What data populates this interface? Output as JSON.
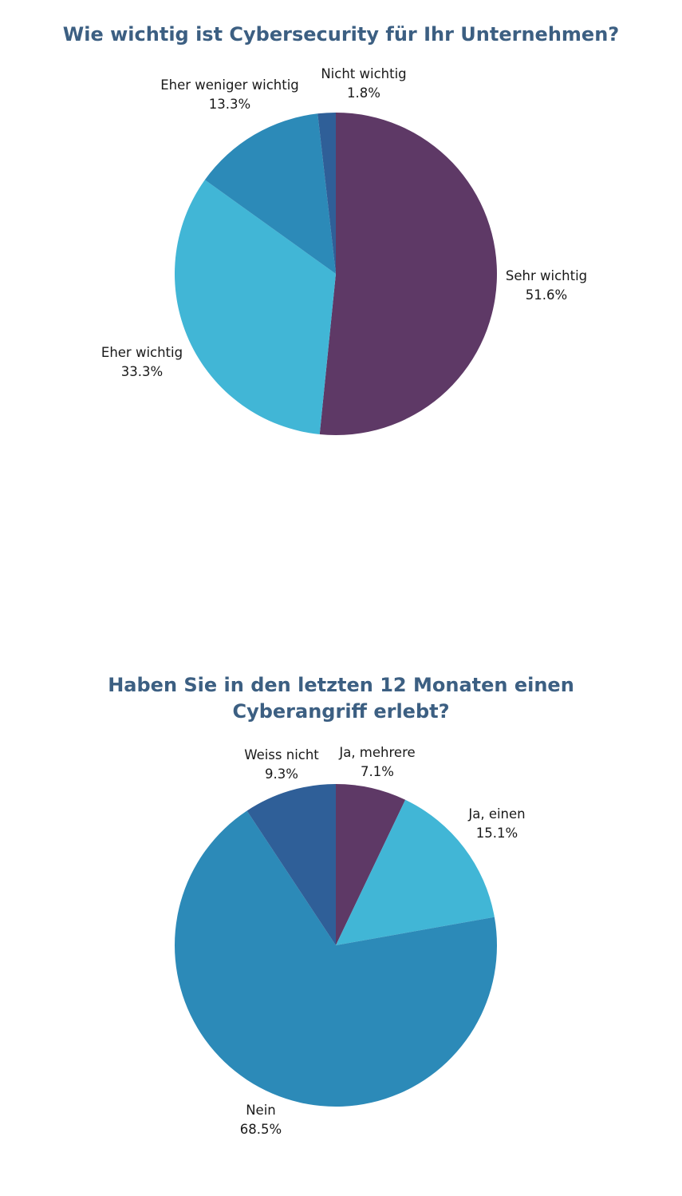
{
  "chart_data": [
    {
      "type": "pie",
      "title": "Wie wichtig ist Cybersecurity für Ihr Unternehmen?",
      "categories": [
        "Sehr wichtig",
        "Eher wichtig",
        "Eher weniger wichtig",
        "Nicht wichtig"
      ],
      "values": [
        51.6,
        33.3,
        13.3,
        1.8
      ],
      "value_labels": [
        "51.6%",
        "33.3%",
        "13.3%",
        "1.8%"
      ],
      "colors": [
        "#5e3966",
        "#41b6d6",
        "#2c8ab8",
        "#2f5f98"
      ],
      "start": "12 o'clock",
      "direction": "clockwise",
      "legend": "none"
    },
    {
      "type": "pie",
      "title": "Haben Sie in den letzten 12 Monaten einen Cyberangriff erlebt?",
      "categories": [
        "Ja, mehrere",
        "Ja, einen",
        "Nein",
        "Weiss nicht"
      ],
      "values": [
        7.1,
        15.1,
        68.5,
        9.3
      ],
      "value_labels": [
        "7.1%",
        "15.1%",
        "68.5%",
        "9.3%"
      ],
      "colors": [
        "#5e3966",
        "#41b6d6",
        "#2c8ab8",
        "#2f5f98"
      ],
      "start": "12 o'clock",
      "direction": "clockwise",
      "legend": "none"
    }
  ]
}
